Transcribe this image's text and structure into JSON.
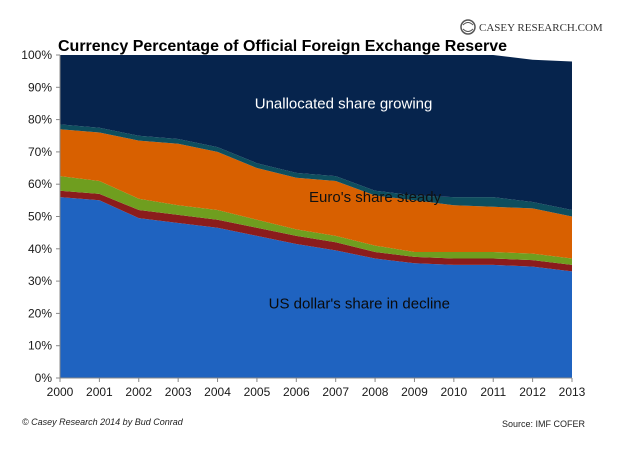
{
  "brand": {
    "name": "CASEY RESEARCH.COM"
  },
  "footer": {
    "credit": "© Casey Research 2014 by Bud Conrad",
    "source": "Source: IMF COFER"
  },
  "chart_data": {
    "type": "area",
    "stacked": true,
    "title": "Currency Percentage of Official Foreign Exchange Reserve",
    "xlabel": "",
    "ylabel": "",
    "x": [
      2000,
      2001,
      2002,
      2003,
      2004,
      2005,
      2006,
      2007,
      2008,
      2009,
      2010,
      2011,
      2012,
      2013
    ],
    "ylim": [
      0,
      100
    ],
    "yticks": [
      "0%",
      "10%",
      "20%",
      "30%",
      "40%",
      "50%",
      "60%",
      "70%",
      "80%",
      "90%",
      "100%"
    ],
    "grid": false,
    "series": [
      {
        "color": "#1f63c0",
        "values": [
          56,
          55,
          49.5,
          48,
          46.5,
          44,
          41.5,
          39.5,
          37,
          35.5,
          35,
          35,
          34.5,
          33
        ]
      },
      {
        "color": "#8b1c1c",
        "values": [
          2,
          2,
          2.5,
          2.5,
          2.5,
          2.5,
          2.5,
          2.5,
          2,
          2,
          2,
          2,
          2,
          2
        ]
      },
      {
        "color": "#6f9e1f",
        "values": [
          4.5,
          4,
          3.5,
          3,
          3,
          2.5,
          2,
          2,
          2,
          1.5,
          2,
          2,
          2,
          2
        ]
      },
      {
        "color": "#d86000",
        "values": [
          14.5,
          15,
          18,
          19,
          18,
          16,
          16,
          17,
          15.5,
          16,
          14.5,
          14,
          14,
          13
        ]
      },
      {
        "color": "#0e4e5e",
        "values": [
          1.5,
          1.5,
          1.5,
          1.5,
          1.5,
          1.5,
          1.5,
          1.5,
          1.5,
          1.5,
          2.5,
          3,
          2,
          2
        ]
      },
      {
        "color": "#06244d",
        "values": [
          21.5,
          22.5,
          25,
          26,
          28.5,
          33.5,
          36.5,
          37.5,
          42,
          43.5,
          44,
          44,
          44,
          46
        ]
      }
    ],
    "annotations": [
      {
        "text": "Unallocated share growing",
        "x": 2007.2,
        "y": 85,
        "color": "#ffffff"
      },
      {
        "text": "Euro's share steady",
        "x": 2008.0,
        "y": 56,
        "color": "#111111"
      },
      {
        "text": "US dollar's share in decline",
        "x": 2007.6,
        "y": 23,
        "color": "#0a0a0a"
      }
    ]
  }
}
